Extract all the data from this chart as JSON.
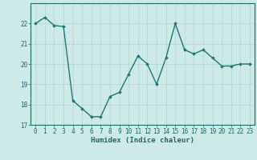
{
  "x": [
    0,
    1,
    2,
    3,
    4,
    5,
    6,
    7,
    8,
    9,
    10,
    11,
    12,
    13,
    14,
    15,
    16,
    17,
    18,
    19,
    20,
    21,
    22,
    23
  ],
  "y": [
    22.0,
    22.3,
    21.9,
    21.85,
    18.2,
    17.8,
    17.4,
    17.4,
    18.4,
    18.6,
    19.5,
    20.4,
    20.0,
    19.0,
    20.3,
    22.0,
    20.7,
    20.5,
    20.7,
    20.3,
    19.9,
    19.9,
    20.0,
    20.0
  ],
  "line_color": "#1a7a6e",
  "bg_color": "#cdeae7",
  "grid_color": "#b0d8d4",
  "xlabel": "Humidex (Indice chaleur)",
  "ylim": [
    17,
    23
  ],
  "xlim": [
    -0.5,
    23.5
  ],
  "yticks": [
    17,
    18,
    19,
    20,
    21,
    22
  ],
  "xticks": [
    0,
    1,
    2,
    3,
    4,
    5,
    6,
    7,
    8,
    9,
    10,
    11,
    12,
    13,
    14,
    15,
    16,
    17,
    18,
    19,
    20,
    21,
    22,
    23
  ],
  "marker": "D",
  "markersize": 1.8,
  "linewidth": 1.0,
  "font_color": "#1a6b60",
  "tick_fontsize": 5.5,
  "label_fontsize": 6.5
}
